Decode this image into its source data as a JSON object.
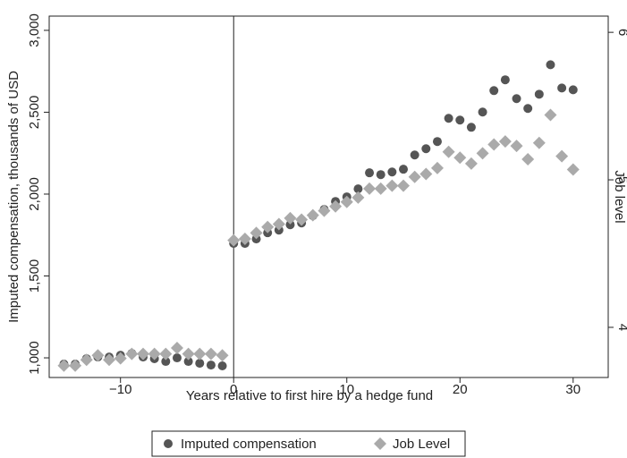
{
  "chart_data": {
    "type": "scatter",
    "xlabel": "Years relative to first hire by a hedge fund",
    "ylabel": "Imputed compensation, thousands of USD",
    "y2label": "Job level",
    "x": [
      -15,
      -14,
      -13,
      -12,
      -11,
      -10,
      -9,
      -8,
      -7,
      -6,
      -5,
      -4,
      -3,
      -2,
      -1,
      0,
      1,
      2,
      3,
      4,
      5,
      6,
      7,
      8,
      9,
      10,
      11,
      12,
      13,
      14,
      15,
      16,
      17,
      18,
      19,
      20,
      21,
      22,
      23,
      24,
      25,
      26,
      27,
      28,
      29,
      30
    ],
    "series": [
      {
        "name": "Imputed compensation",
        "color": "#555555",
        "marker": "circle",
        "values": [
          962,
          962,
          995,
          1005,
          1005,
          1016,
          1027,
          1005,
          995,
          978,
          1000,
          978,
          967,
          956,
          951,
          1699,
          1699,
          1726,
          1764,
          1780,
          1813,
          1824,
          1868,
          1906,
          1955,
          1983,
          2032,
          2130,
          2119,
          2135,
          2152,
          2239,
          2277,
          2321,
          2463,
          2452,
          2408,
          2501,
          2632,
          2698,
          2583,
          2523,
          2610,
          2790,
          2648,
          2637
        ]
      },
      {
        "name": "Job Level",
        "color": "#aaaaaa",
        "marker": "diamond",
        "axis": "y2",
        "values": [
          3.74,
          3.74,
          3.78,
          3.81,
          3.78,
          3.79,
          3.82,
          3.82,
          3.82,
          3.82,
          3.86,
          3.82,
          3.82,
          3.82,
          3.81,
          4.59,
          4.6,
          4.64,
          4.68,
          4.7,
          4.74,
          4.73,
          4.76,
          4.79,
          4.82,
          4.85,
          4.88,
          4.94,
          4.94,
          4.96,
          4.96,
          5.02,
          5.04,
          5.08,
          5.19,
          5.15,
          5.11,
          5.18,
          5.24,
          5.26,
          5.23,
          5.14,
          5.25,
          5.44,
          5.16,
          5.07
        ]
      }
    ],
    "xlim": [
      -16.3,
      33.1
    ],
    "xticks": [
      {
        "value": -10,
        "label": "−10"
      },
      0,
      10,
      20,
      30
    ],
    "ylim": [
      880,
      3087
    ],
    "yticks": [
      {
        "value": 1000,
        "label": "1,000"
      },
      {
        "value": 1500,
        "label": "1,500"
      },
      {
        "value": 2000,
        "label": "2,000"
      },
      {
        "value": 2500,
        "label": "2,500"
      },
      {
        "value": 3000,
        "label": "3,000"
      }
    ],
    "y2lim": [
      3.66,
      6.11
    ],
    "y2ticks": [
      4,
      5,
      6
    ],
    "vline": 0,
    "legend": "bottom"
  }
}
